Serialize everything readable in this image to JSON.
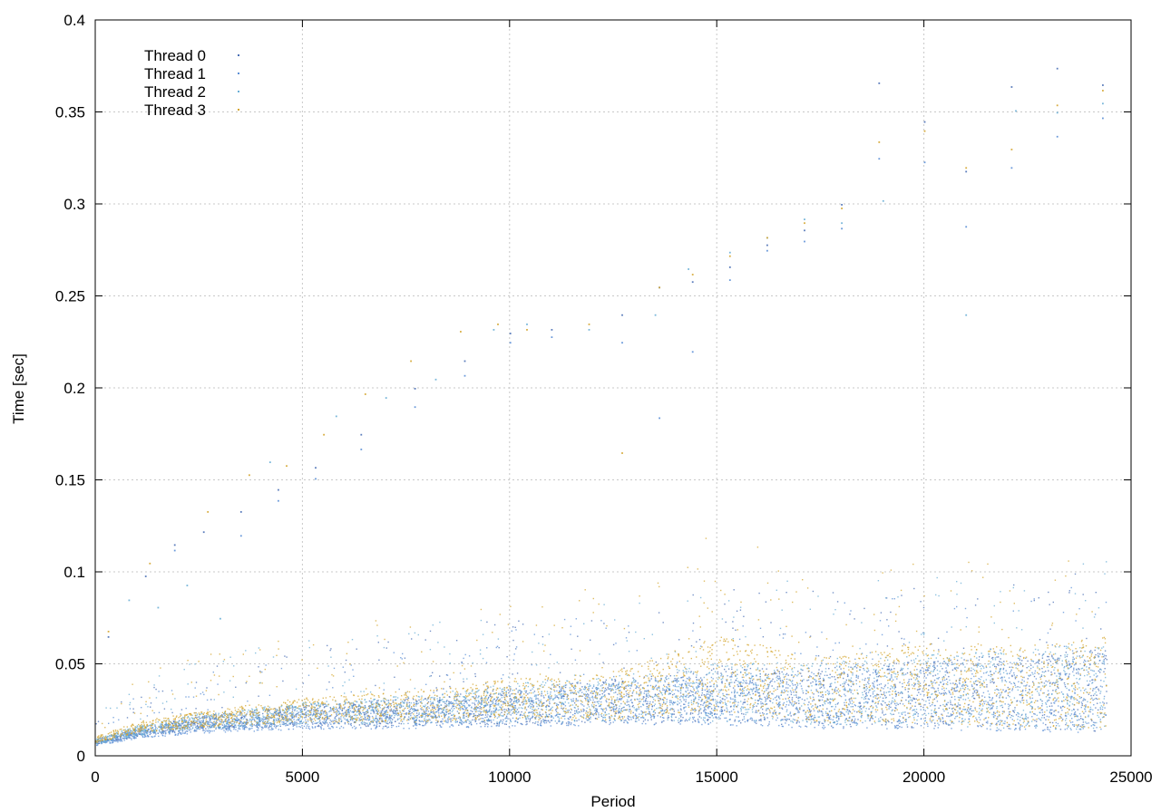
{
  "chart_data": {
    "type": "scatter",
    "title": "",
    "xlabel": "Period",
    "ylabel": "Time [sec]",
    "xlim": [
      0,
      25000
    ],
    "ylim": [
      0,
      0.4
    ],
    "x_ticks": [
      0,
      5000,
      10000,
      15000,
      20000,
      25000
    ],
    "y_ticks": [
      0,
      0.05,
      0.1,
      0.15,
      0.2,
      0.25,
      0.3,
      0.35,
      0.4
    ],
    "x_tick_labels": [
      "0",
      "5000",
      "10000",
      "15000",
      "20000",
      "25000"
    ],
    "y_tick_labels": [
      "0",
      "0.05",
      "0.1",
      "0.15",
      "0.2",
      "0.25",
      "0.3",
      "0.35",
      "0.4"
    ],
    "grid": true,
    "legend_position": "top-left",
    "series": [
      {
        "name": "Thread 0",
        "color": "#4a6fb5",
        "marker": "dot",
        "trend": [
          [
            0,
            0.008
          ],
          [
            1000,
            0.013
          ],
          [
            2500,
            0.018
          ],
          [
            5000,
            0.022
          ],
          [
            7500,
            0.024
          ],
          [
            10000,
            0.027
          ],
          [
            12500,
            0.03
          ],
          [
            15000,
            0.033
          ],
          [
            17500,
            0.032
          ],
          [
            20000,
            0.034
          ],
          [
            22500,
            0.035
          ],
          [
            24400,
            0.036
          ]
        ],
        "outliers": [
          [
            300,
            0.065
          ],
          [
            1200,
            0.098
          ],
          [
            1900,
            0.115
          ],
          [
            2600,
            0.122
          ],
          [
            3500,
            0.133
          ],
          [
            4400,
            0.145
          ],
          [
            5300,
            0.157
          ],
          [
            6400,
            0.175
          ],
          [
            7700,
            0.2
          ],
          [
            8900,
            0.215
          ],
          [
            10000,
            0.23
          ],
          [
            11000,
            0.232
          ],
          [
            12700,
            0.24
          ],
          [
            13600,
            0.255
          ],
          [
            14400,
            0.258
          ],
          [
            15300,
            0.266
          ],
          [
            16200,
            0.278
          ],
          [
            17100,
            0.286
          ],
          [
            18000,
            0.3
          ],
          [
            18900,
            0.366
          ],
          [
            20000,
            0.345
          ],
          [
            21000,
            0.318
          ],
          [
            22100,
            0.364
          ],
          [
            23200,
            0.374
          ],
          [
            24300,
            0.365
          ]
        ]
      },
      {
        "name": "Thread 1",
        "color": "#5b8fd6",
        "marker": "dot",
        "trend": [
          [
            0,
            0.007
          ],
          [
            1000,
            0.012
          ],
          [
            2500,
            0.016
          ],
          [
            5000,
            0.02
          ],
          [
            7500,
            0.022
          ],
          [
            10000,
            0.025
          ],
          [
            12500,
            0.028
          ],
          [
            15000,
            0.031
          ],
          [
            17500,
            0.03
          ],
          [
            20000,
            0.032
          ],
          [
            22500,
            0.033
          ],
          [
            24400,
            0.034
          ]
        ],
        "outliers": [
          [
            1900,
            0.112
          ],
          [
            3500,
            0.12
          ],
          [
            4400,
            0.139
          ],
          [
            5300,
            0.151
          ],
          [
            6400,
            0.167
          ],
          [
            7700,
            0.19
          ],
          [
            8900,
            0.207
          ],
          [
            10000,
            0.225
          ],
          [
            11000,
            0.228
          ],
          [
            12700,
            0.225
          ],
          [
            13600,
            0.184
          ],
          [
            14400,
            0.22
          ],
          [
            15300,
            0.259
          ],
          [
            16200,
            0.275
          ],
          [
            17100,
            0.28
          ],
          [
            18000,
            0.287
          ],
          [
            18900,
            0.325
          ],
          [
            20000,
            0.323
          ],
          [
            21000,
            0.288
          ],
          [
            22100,
            0.32
          ],
          [
            23200,
            0.337
          ],
          [
            24300,
            0.347
          ]
        ]
      },
      {
        "name": "Thread 2",
        "color": "#6aafd6",
        "marker": "dot",
        "trend": [
          [
            0,
            0.008
          ],
          [
            1000,
            0.014
          ],
          [
            2500,
            0.019
          ],
          [
            5000,
            0.023
          ],
          [
            7500,
            0.025
          ],
          [
            10000,
            0.029
          ],
          [
            12500,
            0.031
          ],
          [
            15000,
            0.035
          ],
          [
            17500,
            0.034
          ],
          [
            20000,
            0.036
          ],
          [
            22500,
            0.037
          ],
          [
            24400,
            0.038
          ]
        ],
        "outliers": [
          [
            800,
            0.085
          ],
          [
            1500,
            0.081
          ],
          [
            2200,
            0.093
          ],
          [
            3000,
            0.075
          ],
          [
            4200,
            0.16
          ],
          [
            5800,
            0.185
          ],
          [
            7000,
            0.195
          ],
          [
            8200,
            0.205
          ],
          [
            9600,
            0.232
          ],
          [
            10400,
            0.235
          ],
          [
            11900,
            0.232
          ],
          [
            13500,
            0.24
          ],
          [
            14300,
            0.265
          ],
          [
            15300,
            0.274
          ],
          [
            16200,
            0.282
          ],
          [
            17100,
            0.292
          ],
          [
            18000,
            0.29
          ],
          [
            19000,
            0.302
          ],
          [
            21000,
            0.24
          ],
          [
            22200,
            0.351
          ],
          [
            23200,
            0.35
          ],
          [
            24300,
            0.355
          ]
        ]
      },
      {
        "name": "Thread 3",
        "color": "#d4a52f",
        "marker": "dot",
        "trend": [
          [
            0,
            0.009
          ],
          [
            1000,
            0.016
          ],
          [
            2500,
            0.02
          ],
          [
            5000,
            0.025
          ],
          [
            7500,
            0.027
          ],
          [
            10000,
            0.031
          ],
          [
            12500,
            0.033
          ],
          [
            15000,
            0.045
          ],
          [
            17500,
            0.036
          ],
          [
            20000,
            0.04
          ],
          [
            22500,
            0.038
          ],
          [
            24400,
            0.04
          ]
        ],
        "outliers": [
          [
            300,
            0.068
          ],
          [
            1300,
            0.105
          ],
          [
            2700,
            0.133
          ],
          [
            3700,
            0.153
          ],
          [
            4600,
            0.158
          ],
          [
            5500,
            0.175
          ],
          [
            6500,
            0.197
          ],
          [
            7600,
            0.215
          ],
          [
            8800,
            0.231
          ],
          [
            9700,
            0.235
          ],
          [
            10400,
            0.232
          ],
          [
            11900,
            0.235
          ],
          [
            12700,
            0.165
          ],
          [
            13600,
            0.255
          ],
          [
            14400,
            0.262
          ],
          [
            15300,
            0.272
          ],
          [
            16200,
            0.282
          ],
          [
            17100,
            0.29
          ],
          [
            18000,
            0.298
          ],
          [
            18900,
            0.334
          ],
          [
            20000,
            0.34
          ],
          [
            21000,
            0.32
          ],
          [
            22100,
            0.33
          ],
          [
            23200,
            0.354
          ],
          [
            24300,
            0.362
          ]
        ]
      }
    ]
  }
}
